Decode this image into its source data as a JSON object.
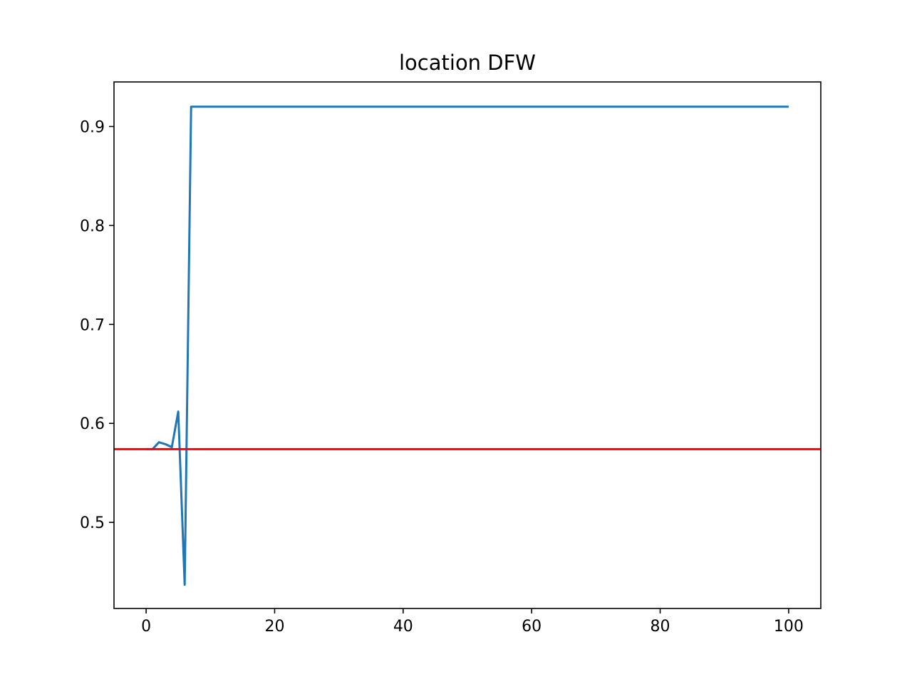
{
  "chart_data": {
    "type": "line",
    "title": "location DFW",
    "xlabel": "",
    "ylabel": "",
    "xlim": [
      -5,
      105
    ],
    "ylim": [
      0.413,
      0.945
    ],
    "x_ticks": [
      0,
      20,
      40,
      60,
      80,
      100
    ],
    "x_tick_labels": [
      "0",
      "20",
      "40",
      "60",
      "80",
      "100"
    ],
    "y_ticks": [
      0.5,
      0.6,
      0.7,
      0.8,
      0.9
    ],
    "y_tick_labels": [
      "0.5",
      "0.6",
      "0.7",
      "0.8",
      "0.9"
    ],
    "grid": false,
    "series": [
      {
        "color": "#1f77b4",
        "x": [
          0,
          1,
          2,
          3,
          4,
          5,
          6,
          7,
          8,
          9,
          10,
          11,
          12,
          13,
          14,
          15,
          16,
          17,
          18,
          19,
          20,
          21,
          22,
          23,
          24,
          25,
          26,
          27,
          28,
          29,
          30,
          31,
          32,
          33,
          34,
          35,
          36,
          37,
          38,
          39,
          40,
          41,
          42,
          43,
          44,
          45,
          46,
          47,
          48,
          49,
          50,
          51,
          52,
          53,
          54,
          55,
          56,
          57,
          58,
          59,
          60,
          61,
          62,
          63,
          64,
          65,
          66,
          67,
          68,
          69,
          70,
          71,
          72,
          73,
          74,
          75,
          76,
          77,
          78,
          79,
          80,
          81,
          82,
          83,
          84,
          85,
          86,
          87,
          88,
          89,
          90,
          91,
          92,
          93,
          94,
          95,
          96,
          97,
          98,
          99,
          100
        ],
        "y": [
          0.574,
          0.574,
          0.581,
          0.579,
          0.576,
          0.612,
          0.437,
          0.92,
          0.92,
          0.92,
          0.92,
          0.92,
          0.92,
          0.92,
          0.92,
          0.92,
          0.92,
          0.92,
          0.92,
          0.92,
          0.92,
          0.92,
          0.92,
          0.92,
          0.92,
          0.92,
          0.92,
          0.92,
          0.92,
          0.92,
          0.92,
          0.92,
          0.92,
          0.92,
          0.92,
          0.92,
          0.92,
          0.92,
          0.92,
          0.92,
          0.92,
          0.92,
          0.92,
          0.92,
          0.92,
          0.92,
          0.92,
          0.92,
          0.92,
          0.92,
          0.92,
          0.92,
          0.92,
          0.92,
          0.92,
          0.92,
          0.92,
          0.92,
          0.92,
          0.92,
          0.92,
          0.92,
          0.92,
          0.92,
          0.92,
          0.92,
          0.92,
          0.92,
          0.92,
          0.92,
          0.92,
          0.92,
          0.92,
          0.92,
          0.92,
          0.92,
          0.92,
          0.92,
          0.92,
          0.92,
          0.92,
          0.92,
          0.92,
          0.92,
          0.92,
          0.92,
          0.92,
          0.92,
          0.92,
          0.92,
          0.92,
          0.92,
          0.92,
          0.92,
          0.92,
          0.92,
          0.92,
          0.92,
          0.92,
          0.92,
          0.92
        ]
      }
    ],
    "hlines": [
      {
        "y": 0.574,
        "color": "#ff0000"
      }
    ]
  }
}
